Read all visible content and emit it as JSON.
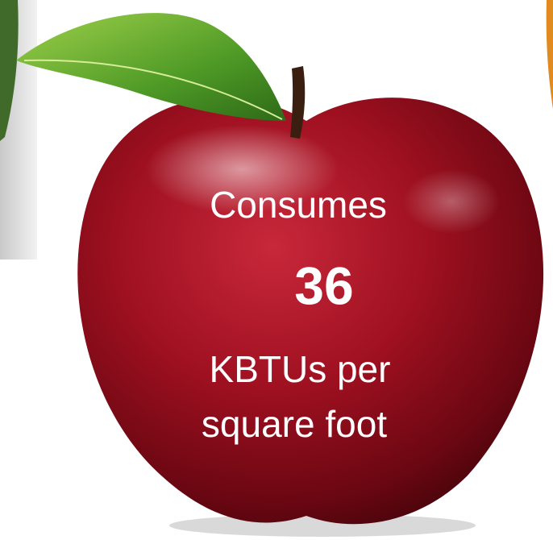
{
  "caption": {
    "line1": "Consumes",
    "number": "36",
    "line3": "KBTUs per",
    "line4": "square foot"
  }
}
